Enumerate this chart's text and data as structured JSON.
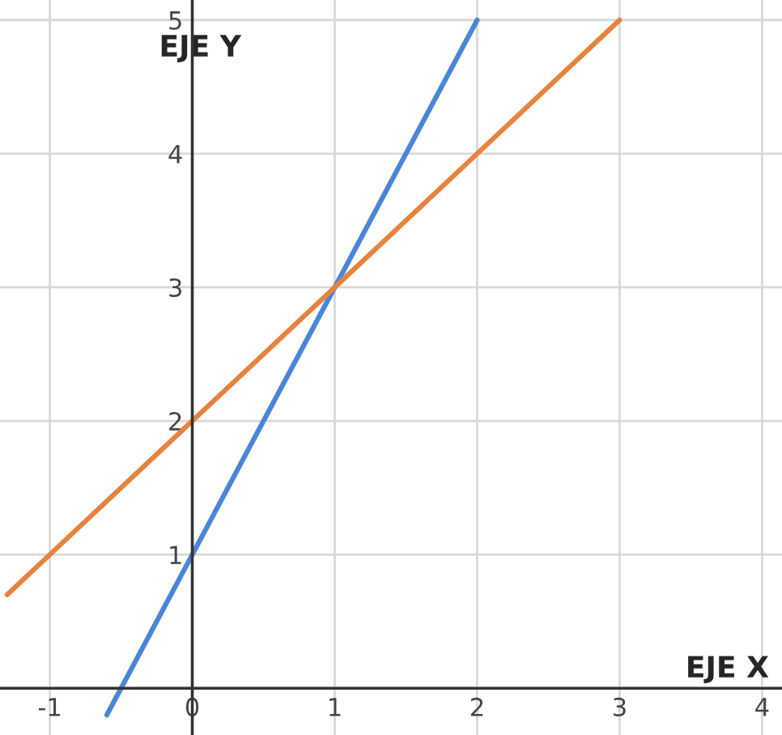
{
  "chart_data": {
    "type": "line",
    "xlabel": "EJE X",
    "ylabel": "EJE Y",
    "xlim": [
      -1.35,
      4.14
    ],
    "ylim": [
      -0.35,
      5.15
    ],
    "xticks": [
      -1,
      0,
      1,
      2,
      3,
      4
    ],
    "yticks": [
      1,
      2,
      3,
      4,
      5
    ],
    "grid": true,
    "legend": false,
    "marker": "none",
    "line_style": "solid",
    "series": [
      {
        "color": "#4a86d8",
        "x": [
          -0.6,
          0,
          1,
          2
        ],
        "values": [
          -0.2,
          1,
          3,
          5
        ]
      },
      {
        "color": "#e6833f",
        "x": [
          -1.3,
          -1,
          0,
          1,
          2,
          3
        ],
        "values": [
          0.7,
          1,
          2,
          3,
          4,
          5
        ]
      }
    ]
  }
}
